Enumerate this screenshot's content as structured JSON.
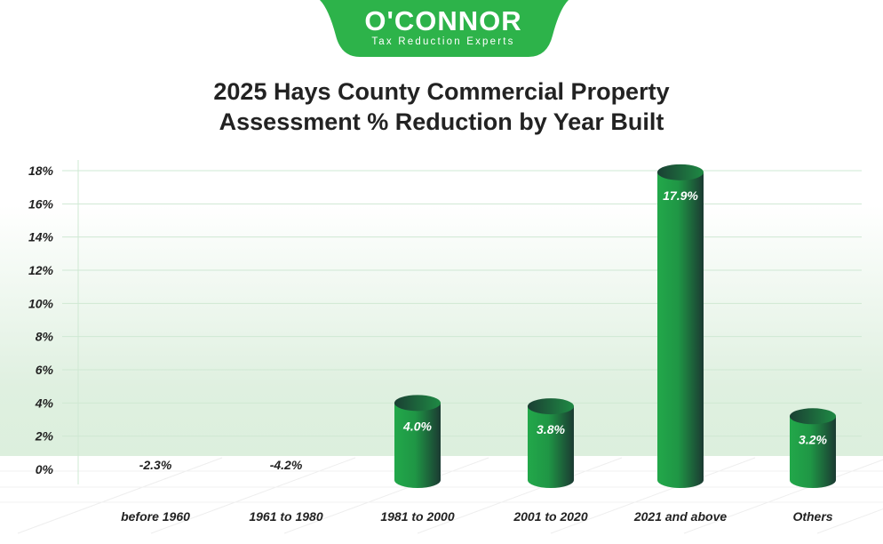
{
  "logo": {
    "name": "O'CONNOR",
    "tagline": "Tax Reduction Experts"
  },
  "colors": {
    "brand": "#2db34a",
    "bar_light": "#22a84a",
    "bar_dark": "#1b3a32",
    "grid": "#cfe8d3"
  },
  "chart_data": {
    "type": "bar",
    "title": "2025 Hays County Commercial Property Assessment % Reduction by Year Built",
    "title_lines": [
      "2025 Hays County Commercial Property",
      "Assessment % Reduction by Year Built"
    ],
    "categories": [
      "before 1960",
      "1961 to 1980",
      "1981 to 2000",
      "2001 to 2020",
      "2021 and above",
      "Others"
    ],
    "values": [
      -2.3,
      -4.2,
      4.0,
      3.8,
      17.9,
      3.2
    ],
    "data_labels": [
      "-2.3%",
      "-4.2%",
      "4.0%",
      "3.8%",
      "17.9%",
      "3.2%"
    ],
    "yticks": [
      "0%",
      "2%",
      "4%",
      "6%",
      "8%",
      "10%",
      "12%",
      "14%",
      "16%",
      "18%"
    ],
    "ylim": [
      0,
      18
    ],
    "xlabel": "",
    "ylabel": "",
    "grid": true
  }
}
